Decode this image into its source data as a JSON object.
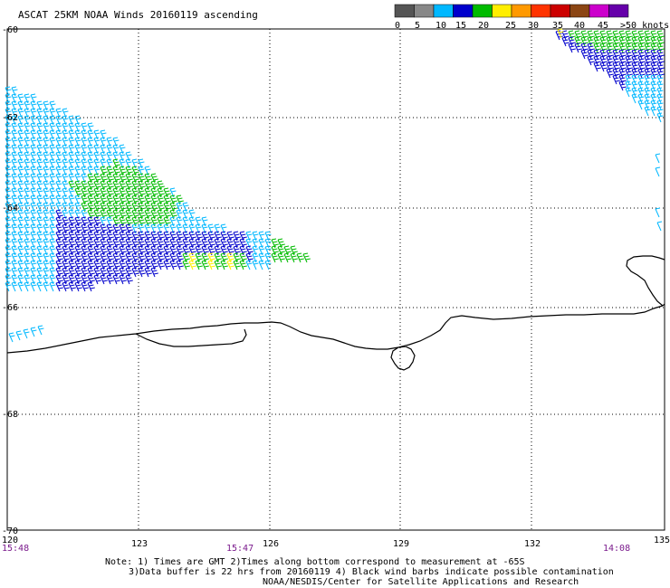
{
  "title": "ASCAT 25KM NOAA Winds 20160119 ascending",
  "legend": {
    "labels": [
      "0",
      "5",
      "10",
      "15",
      "20",
      "25",
      "30",
      "35",
      "40",
      "45",
      ">50 knots"
    ],
    "colors": [
      "#555555",
      "#888888",
      "#00b8ff",
      "#0000cc",
      "#00bb00",
      "#ffee00",
      "#ff9900",
      "#ff3300",
      "#cc0000",
      "#8b4513",
      "#cc00cc",
      "#6600aa"
    ]
  },
  "lat_labels": [
    "-60",
    "-62",
    "-64",
    "-66",
    "-68",
    "-70"
  ],
  "lon_labels": [
    "120",
    "123",
    "126",
    "129",
    "132",
    "135"
  ],
  "times": [
    "15:48",
    "15:47",
    "14:08"
  ],
  "notes": [
    "Note: 1) Times are GMT 2)Times along bottom correspond to measurement at -65S",
    "3)Data buffer is 22 hrs from 20160119 4) Black wind barbs indicate possible contamination",
    "NOAA/NESDIS/Center for Satellite Applications and Research"
  ]
}
